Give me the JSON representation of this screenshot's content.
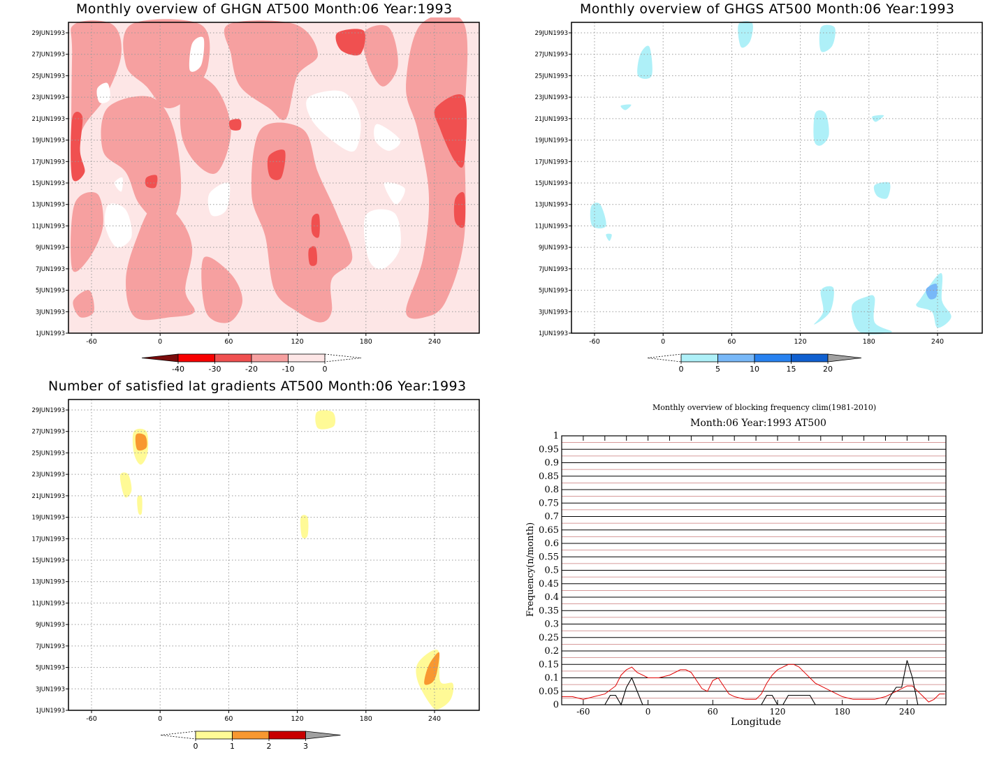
{
  "panels": {
    "ghgn": {
      "title": "Monthly overview of GHGN AT500 Month:06 Year:1993"
    },
    "ghgs": {
      "title": "Monthly overview of GHGS AT500 Month:06 Year:1993"
    },
    "grad": {
      "title": "Number of satisfied lat gradients AT500 Month:06 Year:1993"
    },
    "freq": {
      "title": "Monthly overview of blocking frequency clim(1981-2010)",
      "subtitle": "Month:06 Year:1993  AT500",
      "xlabel": "Longitude",
      "ylabel": "Frequency(n/month)"
    }
  },
  "map_axes": {
    "x_ticks": [
      "-60",
      "0",
      "60",
      "120",
      "180",
      "240"
    ],
    "y_ticks": [
      "1JUN1993",
      "3JUN1993",
      "5JUN1993",
      "7JUN1993",
      "9JUN1993",
      "11JUN1993",
      "13JUN1993",
      "15JUN1993",
      "17JUN1993",
      "19JUN1993",
      "21JUN1993",
      "23JUN1993",
      "25JUN1993",
      "27JUN1993",
      "29JUN1993"
    ]
  },
  "colorbars": {
    "ghgn": {
      "labels": [
        "-40",
        "-30",
        "-20",
        "-10",
        "0"
      ],
      "colors": [
        "#7a0c0c",
        "#f80000",
        "#f05050",
        "#f6a0a0",
        "#fde6e6"
      ]
    },
    "ghgs": {
      "labels": [
        "0",
        "5",
        "10",
        "15",
        "20"
      ],
      "colors": [
        "#aef0f8",
        "#78b8f8",
        "#2882f0",
        "#1060d0",
        "#a0a0a0"
      ]
    },
    "grad": {
      "labels": [
        "0",
        "1",
        "2",
        "3"
      ],
      "colors": [
        "#fffa96",
        "#f89830",
        "#c80000",
        "#a0a0a0"
      ]
    }
  },
  "colors": {
    "ghgn_light": "#fde6e6",
    "ghgn_mid": "#f6a0a0",
    "ghgn_strong": "#f05050",
    "ghgn_white": "#ffffff",
    "ghgs_light": "#aef0f8",
    "ghgs_mid": "#78b8f8",
    "grad_yellow": "#fffa96",
    "grad_orange": "#f89830",
    "clim_line": "#e00000",
    "year_line": "#000000"
  },
  "chart_data": [
    {
      "type": "heatmap",
      "title": "Monthly overview of GHGN AT500 Month:06 Year:1993",
      "x_axis": "longitude",
      "xlim": [
        -80,
        270
      ],
      "y_axis": "date",
      "ylim": [
        "1JUN1993",
        "30JUN1993"
      ],
      "levels": [
        -40,
        -30,
        -20,
        -10,
        0
      ],
      "regions": [
        {
          "level_range": [
            -30,
            -20
          ],
          "lon_center": -75,
          "date": "19JUN1993"
        },
        {
          "level_range": [
            -30,
            -20
          ],
          "lon_center": 104,
          "date": "16JUN1993"
        },
        {
          "level_range": [
            -30,
            -20
          ],
          "lon_center": 136,
          "date": "11JUN1993"
        },
        {
          "level_range": [
            -30,
            -20
          ],
          "lon_center": 133,
          "date": "8JUN1993"
        },
        {
          "level_range": [
            -30,
            -20
          ],
          "lon_center": 162,
          "date": "28JUN1993"
        },
        {
          "level_range": [
            -30,
            -20
          ],
          "lon_center": 258,
          "date": "20JUN1993"
        },
        {
          "level_range": [
            -30,
            -20
          ],
          "lon_center": 264,
          "date": "12JUN1993"
        },
        {
          "level_range": [
            -30,
            -20
          ],
          "lon_center": -5,
          "date": "15JUN1993"
        }
      ]
    },
    {
      "type": "heatmap",
      "title": "Monthly overview of GHGS AT500 Month:06 Year:1993",
      "x_axis": "longitude",
      "xlim": [
        -80,
        270
      ],
      "y_axis": "date",
      "ylim": [
        "1JUN1993",
        "30JUN1993"
      ],
      "levels": [
        0,
        5,
        10,
        15,
        20
      ],
      "regions": [
        {
          "level_range": [
            0,
            5
          ],
          "lon_center": 72,
          "date": "29JUN1993"
        },
        {
          "level_range": [
            0,
            5
          ],
          "lon_center": 143,
          "date": "28JUN1993"
        },
        {
          "level_range": [
            0,
            5
          ],
          "lon_center": -17,
          "date": "26JUN1993"
        },
        {
          "level_range": [
            0,
            5
          ],
          "lon_center": -33,
          "date": "22JUN1993"
        },
        {
          "level_range": [
            0,
            5
          ],
          "lon_center": 139,
          "date": "19JUN1993"
        },
        {
          "level_range": [
            0,
            5
          ],
          "lon_center": 187,
          "date": "21JUN1993"
        },
        {
          "level_range": [
            0,
            5
          ],
          "lon_center": 192,
          "date": "14JUN1993"
        },
        {
          "level_range": [
            0,
            5
          ],
          "lon_center": -57,
          "date": "11JUN1993"
        },
        {
          "level_range": [
            0,
            5
          ],
          "lon_center": 140,
          "date": "3JUN1993"
        },
        {
          "level_range": [
            0,
            5
          ],
          "lon_center": 179,
          "date": "2JUN1993"
        },
        {
          "level_range": [
            0,
            5
          ],
          "lon_center": 240,
          "date": "4JUN1993"
        },
        {
          "level_range": [
            5,
            10
          ],
          "lon_center": 235,
          "date": "5JUN1993"
        }
      ]
    },
    {
      "type": "heatmap",
      "title": "Number of satisfied lat gradients AT500 Month:06 Year:1993",
      "x_axis": "longitude",
      "xlim": [
        -80,
        270
      ],
      "y_axis": "date",
      "ylim": [
        "1JUN1993",
        "30JUN1993"
      ],
      "levels": [
        0,
        1,
        2,
        3
      ],
      "regions": [
        {
          "level_range": [
            0,
            1
          ],
          "lon_center": 144,
          "date": "28JUN1993"
        },
        {
          "level_range": [
            0,
            1
          ],
          "lon_center": -17,
          "date": "26JUN1993"
        },
        {
          "level_range": [
            1,
            2
          ],
          "lon_center": -17,
          "date": "26JUN1993"
        },
        {
          "level_range": [
            0,
            1
          ],
          "lon_center": -30,
          "date": "22JUN1993"
        },
        {
          "level_range": [
            0,
            1
          ],
          "lon_center": -18,
          "date": "20JUN1993"
        },
        {
          "level_range": [
            0,
            1
          ],
          "lon_center": 126,
          "date": "18JUN1993"
        },
        {
          "level_range": [
            0,
            1
          ],
          "lon_center": 240,
          "date": "4JUN1993"
        },
        {
          "level_range": [
            1,
            2
          ],
          "lon_center": 237,
          "date": "5JUN1993"
        }
      ]
    },
    {
      "type": "line",
      "title": "Monthly overview of blocking frequency clim(1981-2010)",
      "subtitle": "Month:06 Year:1993  AT500",
      "xlabel": "Longitude",
      "ylabel": "Frequency(n/month)",
      "xlim": [
        -80,
        276
      ],
      "ylim": [
        0,
        1
      ],
      "x_ticks": [
        "-60",
        "0",
        "60",
        "120",
        "180",
        "240"
      ],
      "y_ticks": [
        "0",
        "0.05",
        "0.1",
        "0.15",
        "0.2",
        "0.25",
        "0.3",
        "0.35",
        "0.4",
        "0.45",
        "0.5",
        "0.55",
        "0.6",
        "0.65",
        "0.7",
        "0.75",
        "0.8",
        "0.85",
        "0.9",
        "0.95",
        "1"
      ],
      "grid": true,
      "series": [
        {
          "x": [
            -80,
            -70,
            -60,
            -50,
            -40,
            -30,
            -25,
            -20,
            -15,
            -10,
            -5,
            0,
            10,
            20,
            30,
            35,
            40,
            45,
            50,
            55,
            60,
            65,
            70,
            75,
            80,
            90,
            100,
            105,
            110,
            115,
            120,
            125,
            130,
            135,
            140,
            145,
            150,
            155,
            160,
            170,
            180,
            190,
            200,
            210,
            220,
            230,
            240,
            245,
            250,
            255,
            260,
            265,
            270,
            275
          ],
          "y": [
            0.03,
            0.03,
            0.02,
            0.03,
            0.04,
            0.07,
            0.11,
            0.13,
            0.14,
            0.12,
            0.11,
            0.1,
            0.1,
            0.11,
            0.13,
            0.13,
            0.12,
            0.09,
            0.06,
            0.05,
            0.09,
            0.1,
            0.07,
            0.04,
            0.03,
            0.02,
            0.02,
            0.04,
            0.08,
            0.11,
            0.13,
            0.14,
            0.15,
            0.15,
            0.14,
            0.12,
            0.1,
            0.08,
            0.07,
            0.05,
            0.03,
            0.02,
            0.02,
            0.02,
            0.03,
            0.05,
            0.07,
            0.07,
            0.05,
            0.03,
            0.01,
            0.02,
            0.04,
            0.04
          ]
        },
        {
          "x": [
            -80,
            -40,
            -35,
            -30,
            -25,
            -20,
            -15,
            -10,
            -5,
            0,
            50,
            105,
            110,
            115,
            120,
            125,
            130,
            135,
            140,
            145,
            150,
            155,
            220,
            225,
            230,
            235,
            240,
            245,
            250,
            255,
            276
          ],
          "y": [
            0,
            0,
            0.035,
            0.035,
            0,
            0.065,
            0.1,
            0.05,
            0,
            0,
            0,
            0,
            0.035,
            0.035,
            0,
            0,
            0.035,
            0.035,
            0.035,
            0.035,
            0.035,
            0,
            0,
            0.035,
            0.065,
            0.065,
            0.165,
            0.1,
            0,
            0,
            0
          ]
        }
      ]
    }
  ]
}
